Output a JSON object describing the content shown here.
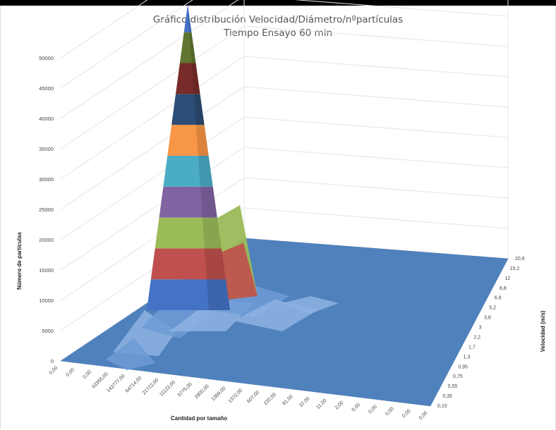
{
  "chart_data": {
    "type": "surface-3d",
    "title": "Gráfico distribución  Velocidad/Diámetro/nºpartículas",
    "subtitle": "Tiempo Ensayo 60 min",
    "zlabel": "Número de partículas",
    "xlabel": "Cantidad por tamaño",
    "ylabel": "Velocidad (m/s)",
    "zlim": [
      0,
      50000
    ],
    "z_ticks": [
      "0",
      "5000",
      "10000",
      "15000",
      "20000",
      "25000",
      "30000",
      "35000",
      "40000",
      "45000",
      "50000"
    ],
    "x_categories": [
      "0,00",
      "0,00",
      "0,00",
      "43355,00",
      "142777,00",
      "64714,00",
      "21722,00",
      "11122,00",
      "5775,00",
      "2900,00",
      "1369,00",
      "1372,00",
      "607,00",
      "220,00",
      "81,00",
      "37,00",
      "11,00",
      "2,00",
      "0,00",
      "0,00",
      "0,00",
      "0,00",
      "0,00"
    ],
    "y_categories": [
      "0,15",
      "0,35",
      "0,55",
      "0,75",
      "0,95",
      "1,3",
      "1,7",
      "2,2",
      "3",
      "3,8",
      "5,2",
      "6,8",
      "8,8",
      "12",
      "15,2",
      "20,8"
    ],
    "peak": {
      "x_index": 4,
      "y_index": 1,
      "value": 49500
    },
    "secondary_ridge": {
      "x_indices": [
        6,
        7,
        8
      ],
      "value": 25000
    },
    "band_colors": [
      "#4472C4",
      "#C0504D",
      "#9BBB59",
      "#8064A2",
      "#4BACC6",
      "#F79646",
      "#2C4D75",
      "#772C2A",
      "#5F7530"
    ],
    "grid": true
  }
}
